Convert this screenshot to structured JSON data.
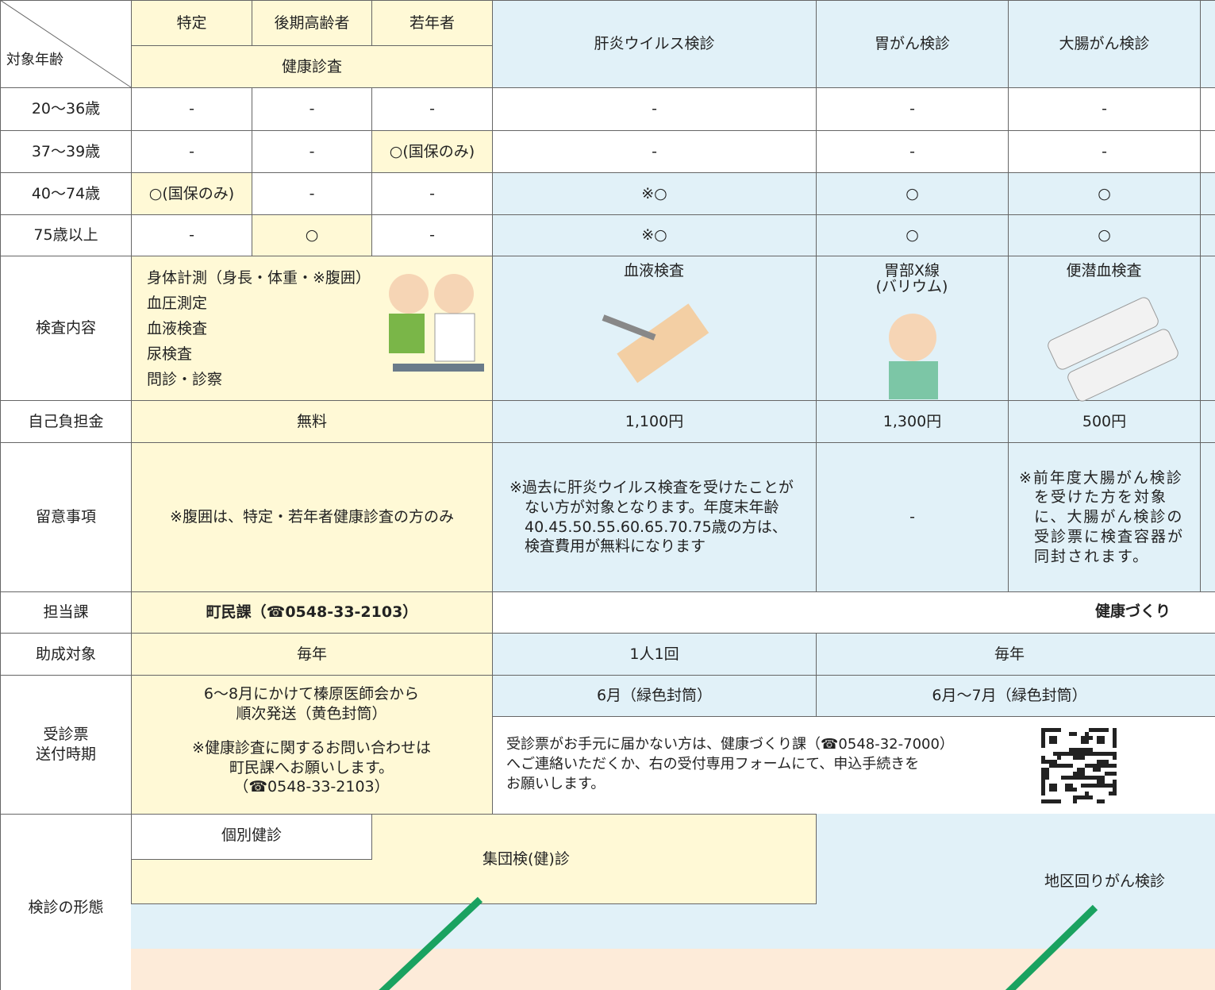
{
  "table": {
    "corner": "対象年齢",
    "header": {
      "sub": [
        "特定",
        "後期高齢者",
        "若年者"
      ],
      "group": "健康診査",
      "columns": [
        "肝炎ウイルス検診",
        "胃がん検診",
        "大腸がん検診"
      ]
    },
    "age_rows": [
      {
        "label": "20～36歳",
        "cells": [
          "-",
          "-",
          "-",
          "-",
          "-",
          "-"
        ]
      },
      {
        "label": "37～39歳",
        "cells": [
          "-",
          "-",
          "○(国保のみ)",
          "-",
          "-",
          "-"
        ]
      },
      {
        "label": "40～74歳",
        "cells": [
          "○(国保のみ)",
          "-",
          "-",
          "※○",
          "○",
          "○"
        ]
      },
      {
        "label": "75歳以上",
        "cells": [
          "-",
          "○",
          "-",
          "※○",
          "○",
          "○"
        ]
      }
    ],
    "exam": {
      "label": "検査内容",
      "health_items": [
        "身体計測（身長・体重・※腹囲）",
        "血圧測定",
        "血液検査",
        "尿検査",
        "問診・診察"
      ],
      "columns": [
        "血液検査",
        "胃部X線\n(バリウム)",
        "便潜血検査"
      ]
    },
    "cost": {
      "label": "自己負担金",
      "cells": [
        "無料",
        "1,100円",
        "1,300円",
        "500円"
      ]
    },
    "notes": {
      "label": "留意事項",
      "cells": [
        "※腹囲は、特定・若年者健康診査の方のみ",
        "※過去に肝炎ウイルス検査を受けたことがない方が対象となります。年度末年齢40.45.50.55.60.65.70.75歳の方は、検査費用が無料になります",
        "-",
        "※前年度大腸がん検診を受けた方を対象に、大腸がん検診の受診票に検査容器が同封されます。"
      ]
    },
    "dept": {
      "label": "担当課",
      "cells": [
        "町民課（☎0548-33-2103）",
        "健康づくり"
      ]
    },
    "subsidy": {
      "label": "助成対象",
      "cells": [
        "毎年",
        "1人1回",
        "毎年"
      ]
    },
    "ticket": {
      "label": "受診票\n送付時期",
      "health": [
        "6～8月にかけて榛原医師会から\n順次発送（黄色封筒）",
        "※健康診査に関するお問い合わせは\n町民課へお願いします。\n（☎0548-33-2103）"
      ],
      "cells": [
        "6月（緑色封筒）",
        "6月～7月（緑色封筒）"
      ],
      "contact": "受診票がお手元に届かない方は、健康づくり課（☎0548-32-7000）\nへご連絡いただくか、右の受付専用フォームにて、申込手続きを\nお願いします。"
    },
    "form": {
      "label": "検診の形態",
      "individual": "個別健診",
      "group": "集団検(健)診",
      "district": "地区回りがん検診"
    }
  }
}
